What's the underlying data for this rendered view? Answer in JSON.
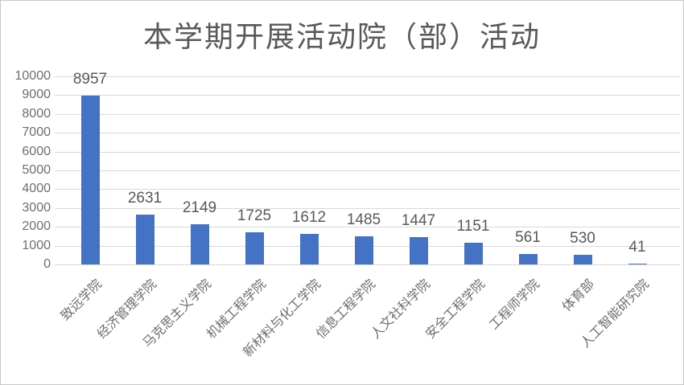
{
  "chart_data": {
    "type": "bar",
    "title": "本学期开展活动院（部）活动",
    "categories": [
      "致远学院",
      "经济管理学院",
      "马克思主义学院",
      "机械工程学院",
      "新材料与化工学院",
      "信息工程学院",
      "人文社科学院",
      "安全工程学院",
      "工程师学院",
      "体育部",
      "人工智能研究院"
    ],
    "values": [
      8957,
      2631,
      2149,
      1725,
      1612,
      1485,
      1447,
      1151,
      561,
      530,
      41
    ],
    "xlabel": "",
    "ylabel": "",
    "ylim": [
      0,
      10000
    ],
    "yticks": [
      0,
      1000,
      2000,
      3000,
      4000,
      5000,
      6000,
      7000,
      8000,
      9000,
      10000
    ],
    "grid": true,
    "legend": "none",
    "data_labels_shown": true,
    "colors": {
      "bar_fill": "#4472c4",
      "gridline": "#d9d9d9",
      "title_text": "#595959",
      "value_label_text": "#595959",
      "axis_label_text": "#6e6e6e",
      "frame_border": "#c8c8c8",
      "background": "#ffffff"
    }
  }
}
